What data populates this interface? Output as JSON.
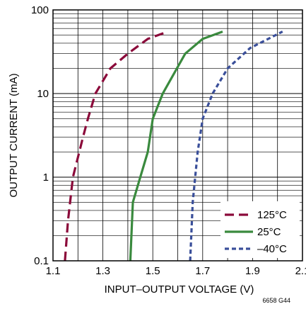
{
  "chart_data": {
    "type": "line",
    "xlabel": "INPUT–OUTPUT VOLTAGE (V)",
    "ylabel": "OUTPUT CURRENT (mA)",
    "xlim": [
      1.1,
      2.1
    ],
    "ylim": [
      0.1,
      100
    ],
    "yscale": "log",
    "x_ticks": [
      "1.1",
      "1.3",
      "1.5",
      "1.7",
      "1.9",
      "2.1"
    ],
    "y_ticks": [
      "0.1",
      "1",
      "10",
      "100"
    ],
    "grid": true,
    "legend_position": "bottom-right",
    "note": "6658 G44",
    "series": [
      {
        "name": "125°C",
        "color": "#8b0a3a",
        "dash": "long-dash",
        "points": [
          [
            1.148,
            0.1
          ],
          [
            1.16,
            0.3
          ],
          [
            1.18,
            1.0
          ],
          [
            1.22,
            3.0
          ],
          [
            1.24,
            5.0
          ],
          [
            1.27,
            10.0
          ],
          [
            1.33,
            20.0
          ],
          [
            1.4,
            30.0
          ],
          [
            1.48,
            45.0
          ],
          [
            1.56,
            55.0
          ]
        ]
      },
      {
        "name": "25°C",
        "color": "#3a8a3e",
        "dash": "solid",
        "points": [
          [
            1.41,
            0.1
          ],
          [
            1.42,
            0.5
          ],
          [
            1.45,
            1.0
          ],
          [
            1.48,
            2.0
          ],
          [
            1.5,
            5.0
          ],
          [
            1.54,
            10.0
          ],
          [
            1.63,
            30.0
          ],
          [
            1.7,
            45.0
          ],
          [
            1.78,
            55.0
          ]
        ]
      },
      {
        "name": "–40°C",
        "color": "#3a4f9a",
        "dash": "short-dash",
        "points": [
          [
            1.65,
            0.1
          ],
          [
            1.66,
            0.5
          ],
          [
            1.67,
            1.0
          ],
          [
            1.68,
            2.0
          ],
          [
            1.7,
            5.0
          ],
          [
            1.74,
            10.0
          ],
          [
            1.8,
            20.0
          ],
          [
            1.89,
            35.0
          ],
          [
            2.02,
            55.0
          ]
        ]
      }
    ]
  }
}
